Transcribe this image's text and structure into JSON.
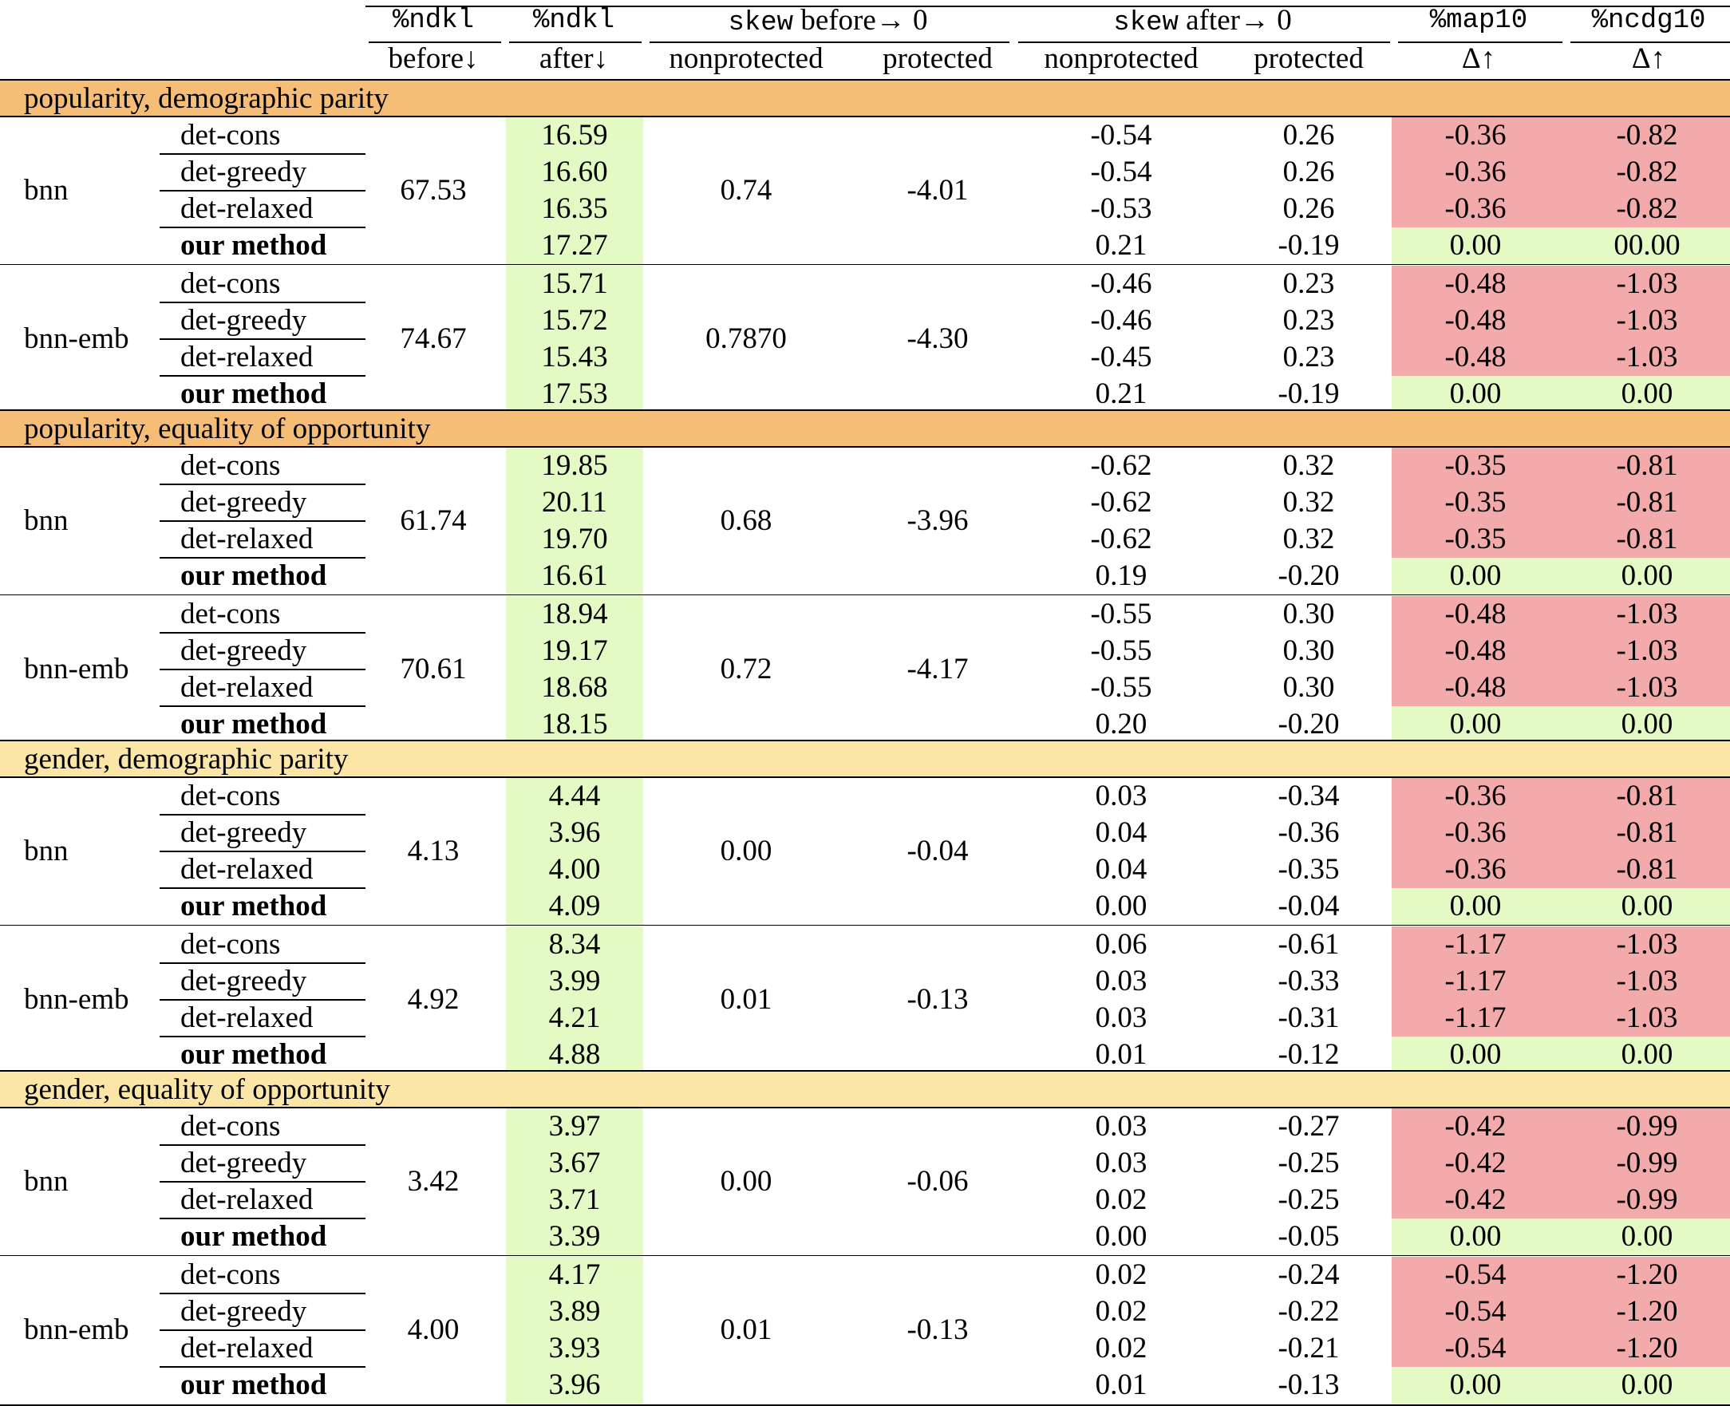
{
  "header": {
    "top": [
      "%ndkl",
      "%ndkl",
      "skew",
      "before→ 0",
      "skew",
      "after→ 0",
      "%map10",
      "%ncdg10"
    ],
    "bottom": [
      "before↓",
      "after↓",
      "nonprotected",
      "protected",
      "nonprotected",
      "protected",
      "Δ↑",
      "Δ↑"
    ]
  },
  "colors": {
    "orange_section": "#f6bd77",
    "yellow_section": "#fce6a7",
    "green_cell": "#e4fac5",
    "red_cell": "#f2aaaa"
  },
  "sections": [
    {
      "title": "popularity, demographic parity",
      "color": "orange",
      "groups": [
        {
          "model": "bnn",
          "ndkl_before": "67.53",
          "skew_before_np": "0.74",
          "skew_before_p": "-4.01",
          "rows": [
            {
              "method": "det-cons",
              "ndkl_after": "16.59",
              "skew_np": "-0.54",
              "skew_p": "0.26",
              "map": "-0.36",
              "ncdg": "-0.82"
            },
            {
              "method": "det-greedy",
              "ndkl_after": "16.60",
              "skew_np": "-0.54",
              "skew_p": "0.26",
              "map": "-0.36",
              "ncdg": "-0.82"
            },
            {
              "method": "det-relaxed",
              "ndkl_after": "16.35",
              "skew_np": "-0.53",
              "skew_p": "0.26",
              "map": "-0.36",
              "ncdg": "-0.82"
            },
            {
              "method": "our method",
              "ndkl_after": "17.27",
              "skew_np": "0.21",
              "skew_p": "-0.19",
              "map": "0.00",
              "ncdg": "00.00"
            }
          ]
        },
        {
          "model": "bnn-emb",
          "ndkl_before": "74.67",
          "skew_before_np": "0.7870",
          "skew_before_p": "-4.30",
          "rows": [
            {
              "method": "det-cons",
              "ndkl_after": "15.71",
              "skew_np": "-0.46",
              "skew_p": "0.23",
              "map": "-0.48",
              "ncdg": "-1.03"
            },
            {
              "method": "det-greedy",
              "ndkl_after": "15.72",
              "skew_np": "-0.46",
              "skew_p": "0.23",
              "map": "-0.48",
              "ncdg": "-1.03"
            },
            {
              "method": "det-relaxed",
              "ndkl_after": "15.43",
              "skew_np": "-0.45",
              "skew_p": "0.23",
              "map": "-0.48",
              "ncdg": "-1.03"
            },
            {
              "method": "our method",
              "ndkl_after": "17.53",
              "skew_np": "0.21",
              "skew_p": "-0.19",
              "map": "0.00",
              "ncdg": "0.00"
            }
          ]
        }
      ]
    },
    {
      "title": "popularity, equality of opportunity",
      "color": "orange",
      "groups": [
        {
          "model": "bnn",
          "ndkl_before": "61.74",
          "skew_before_np": "0.68",
          "skew_before_p": "-3.96",
          "rows": [
            {
              "method": "det-cons",
              "ndkl_after": "19.85",
              "skew_np": "-0.62",
              "skew_p": "0.32",
              "map": "-0.35",
              "ncdg": "-0.81"
            },
            {
              "method": "det-greedy",
              "ndkl_after": "20.11",
              "skew_np": "-0.62",
              "skew_p": "0.32",
              "map": "-0.35",
              "ncdg": "-0.81"
            },
            {
              "method": "det-relaxed",
              "ndkl_after": "19.70",
              "skew_np": "-0.62",
              "skew_p": "0.32",
              "map": "-0.35",
              "ncdg": "-0.81"
            },
            {
              "method": "our method",
              "ndkl_after": "16.61",
              "skew_np": "0.19",
              "skew_p": "-0.20",
              "map": "0.00",
              "ncdg": "0.00"
            }
          ]
        },
        {
          "model": "bnn-emb",
          "ndkl_before": "70.61",
          "skew_before_np": "0.72",
          "skew_before_p": "-4.17",
          "rows": [
            {
              "method": "det-cons",
              "ndkl_after": "18.94",
              "skew_np": "-0.55",
              "skew_p": "0.30",
              "map": "-0.48",
              "ncdg": "-1.03"
            },
            {
              "method": "det-greedy",
              "ndkl_after": "19.17",
              "skew_np": "-0.55",
              "skew_p": "0.30",
              "map": "-0.48",
              "ncdg": "-1.03"
            },
            {
              "method": "det-relaxed",
              "ndkl_after": "18.68",
              "skew_np": "-0.55",
              "skew_p": "0.30",
              "map": "-0.48",
              "ncdg": "-1.03"
            },
            {
              "method": "our method",
              "ndkl_after": "18.15",
              "skew_np": "0.20",
              "skew_p": "-0.20",
              "map": "0.00",
              "ncdg": "0.00"
            }
          ]
        }
      ]
    },
    {
      "title": "gender, demographic parity",
      "color": "yellow",
      "groups": [
        {
          "model": "bnn",
          "ndkl_before": "4.13",
          "skew_before_np": "0.00",
          "skew_before_p": "-0.04",
          "rows": [
            {
              "method": "det-cons",
              "ndkl_after": "4.44",
              "skew_np": "0.03",
              "skew_p": "-0.34",
              "map": "-0.36",
              "ncdg": "-0.81"
            },
            {
              "method": "det-greedy",
              "ndkl_after": "3.96",
              "skew_np": "0.04",
              "skew_p": "-0.36",
              "map": "-0.36",
              "ncdg": "-0.81"
            },
            {
              "method": "det-relaxed",
              "ndkl_after": "4.00",
              "skew_np": "0.04",
              "skew_p": "-0.35",
              "map": "-0.36",
              "ncdg": "-0.81"
            },
            {
              "method": "our method",
              "ndkl_after": "4.09",
              "skew_np": "0.00",
              "skew_p": "-0.04",
              "map": "0.00",
              "ncdg": "0.00"
            }
          ]
        },
        {
          "model": "bnn-emb",
          "ndkl_before": "4.92",
          "skew_before_np": "0.01",
          "skew_before_p": "-0.13",
          "rows": [
            {
              "method": "det-cons",
              "ndkl_after": "8.34",
              "skew_np": "0.06",
              "skew_p": "-0.61",
              "map": "-1.17",
              "ncdg": "-1.03"
            },
            {
              "method": "det-greedy",
              "ndkl_after": "3.99",
              "skew_np": "0.03",
              "skew_p": "-0.33",
              "map": "-1.17",
              "ncdg": "-1.03"
            },
            {
              "method": "det-relaxed",
              "ndkl_after": "4.21",
              "skew_np": "0.03",
              "skew_p": "-0.31",
              "map": "-1.17",
              "ncdg": "-1.03"
            },
            {
              "method": "our method",
              "ndkl_after": "4.88",
              "skew_np": "0.01",
              "skew_p": "-0.12",
              "map": "0.00",
              "ncdg": "0.00"
            }
          ]
        }
      ]
    },
    {
      "title": "gender, equality of opportunity",
      "color": "yellow",
      "groups": [
        {
          "model": "bnn",
          "ndkl_before": "3.42",
          "skew_before_np": "0.00",
          "skew_before_p": "-0.06",
          "rows": [
            {
              "method": "det-cons",
              "ndkl_after": "3.97",
              "skew_np": "0.03",
              "skew_p": "-0.27",
              "map": "-0.42",
              "ncdg": "-0.99"
            },
            {
              "method": "det-greedy",
              "ndkl_after": "3.67",
              "skew_np": "0.03",
              "skew_p": "-0.25",
              "map": "-0.42",
              "ncdg": "-0.99"
            },
            {
              "method": "det-relaxed",
              "ndkl_after": "3.71",
              "skew_np": "0.02",
              "skew_p": "-0.25",
              "map": "-0.42",
              "ncdg": "-0.99"
            },
            {
              "method": "our method",
              "ndkl_after": "3.39",
              "skew_np": "0.00",
              "skew_p": "-0.05",
              "map": "0.00",
              "ncdg": "0.00"
            }
          ]
        },
        {
          "model": "bnn-emb",
          "ndkl_before": "4.00",
          "skew_before_np": "0.01",
          "skew_before_p": "-0.13",
          "rows": [
            {
              "method": "det-cons",
              "ndkl_after": "4.17",
              "skew_np": "0.02",
              "skew_p": "-0.24",
              "map": "-0.54",
              "ncdg": "-1.20"
            },
            {
              "method": "det-greedy",
              "ndkl_after": "3.89",
              "skew_np": "0.02",
              "skew_p": "-0.22",
              "map": "-0.54",
              "ncdg": "-1.20"
            },
            {
              "method": "det-relaxed",
              "ndkl_after": "3.93",
              "skew_np": "0.02",
              "skew_p": "-0.21",
              "map": "-0.54",
              "ncdg": "-1.20"
            },
            {
              "method": "our method",
              "ndkl_after": "3.96",
              "skew_np": "0.01",
              "skew_p": "-0.13",
              "map": "0.00",
              "ncdg": "0.00"
            }
          ]
        }
      ]
    }
  ]
}
